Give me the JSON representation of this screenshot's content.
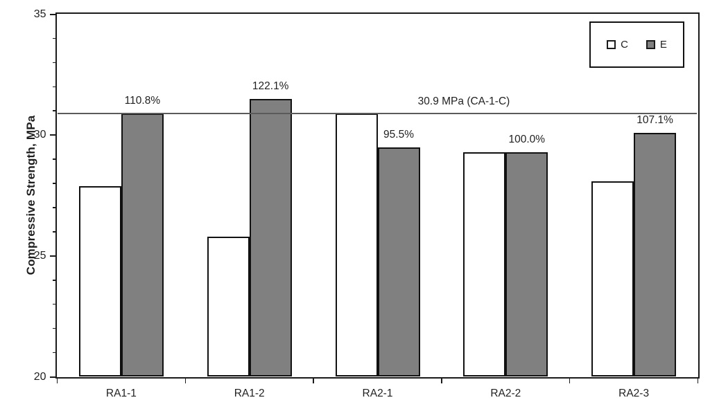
{
  "chart_data": {
    "type": "bar",
    "title": "",
    "ylabel": "Compressive Strength, MPa",
    "xlabel": "",
    "ylim": [
      20,
      35
    ],
    "yticks": [
      20,
      25,
      30,
      35
    ],
    "minor_tick_step": 1,
    "grid": false,
    "categories": [
      "RA1-1",
      "RA1-2",
      "RA2-1",
      "RA2-2",
      "RA2-3"
    ],
    "series": [
      {
        "name": "C",
        "fill": "#ffffff",
        "values": [
          27.9,
          25.8,
          30.9,
          29.3,
          28.1
        ]
      },
      {
        "name": "E",
        "fill": "#808080",
        "values": [
          30.9,
          31.5,
          29.5,
          29.3,
          30.1
        ]
      }
    ],
    "value_labels": {
      "series": "E",
      "labels": [
        "110.8%",
        "122.1%",
        "95.5%",
        "100.0%",
        "107.1%"
      ]
    },
    "reference_line": {
      "value": 30.9,
      "label": "30.9 MPa (CA-1-C)",
      "color": "#5a5a5a"
    },
    "legend": {
      "position": "top-right",
      "entries": [
        "C",
        "E"
      ]
    },
    "colors": {
      "bar_border": "#111111",
      "axis": "#1a1a1a",
      "text": "#1f1f1f",
      "background": "#ffffff",
      "series_e_fill": "#808080",
      "series_c_fill": "#ffffff"
    }
  }
}
